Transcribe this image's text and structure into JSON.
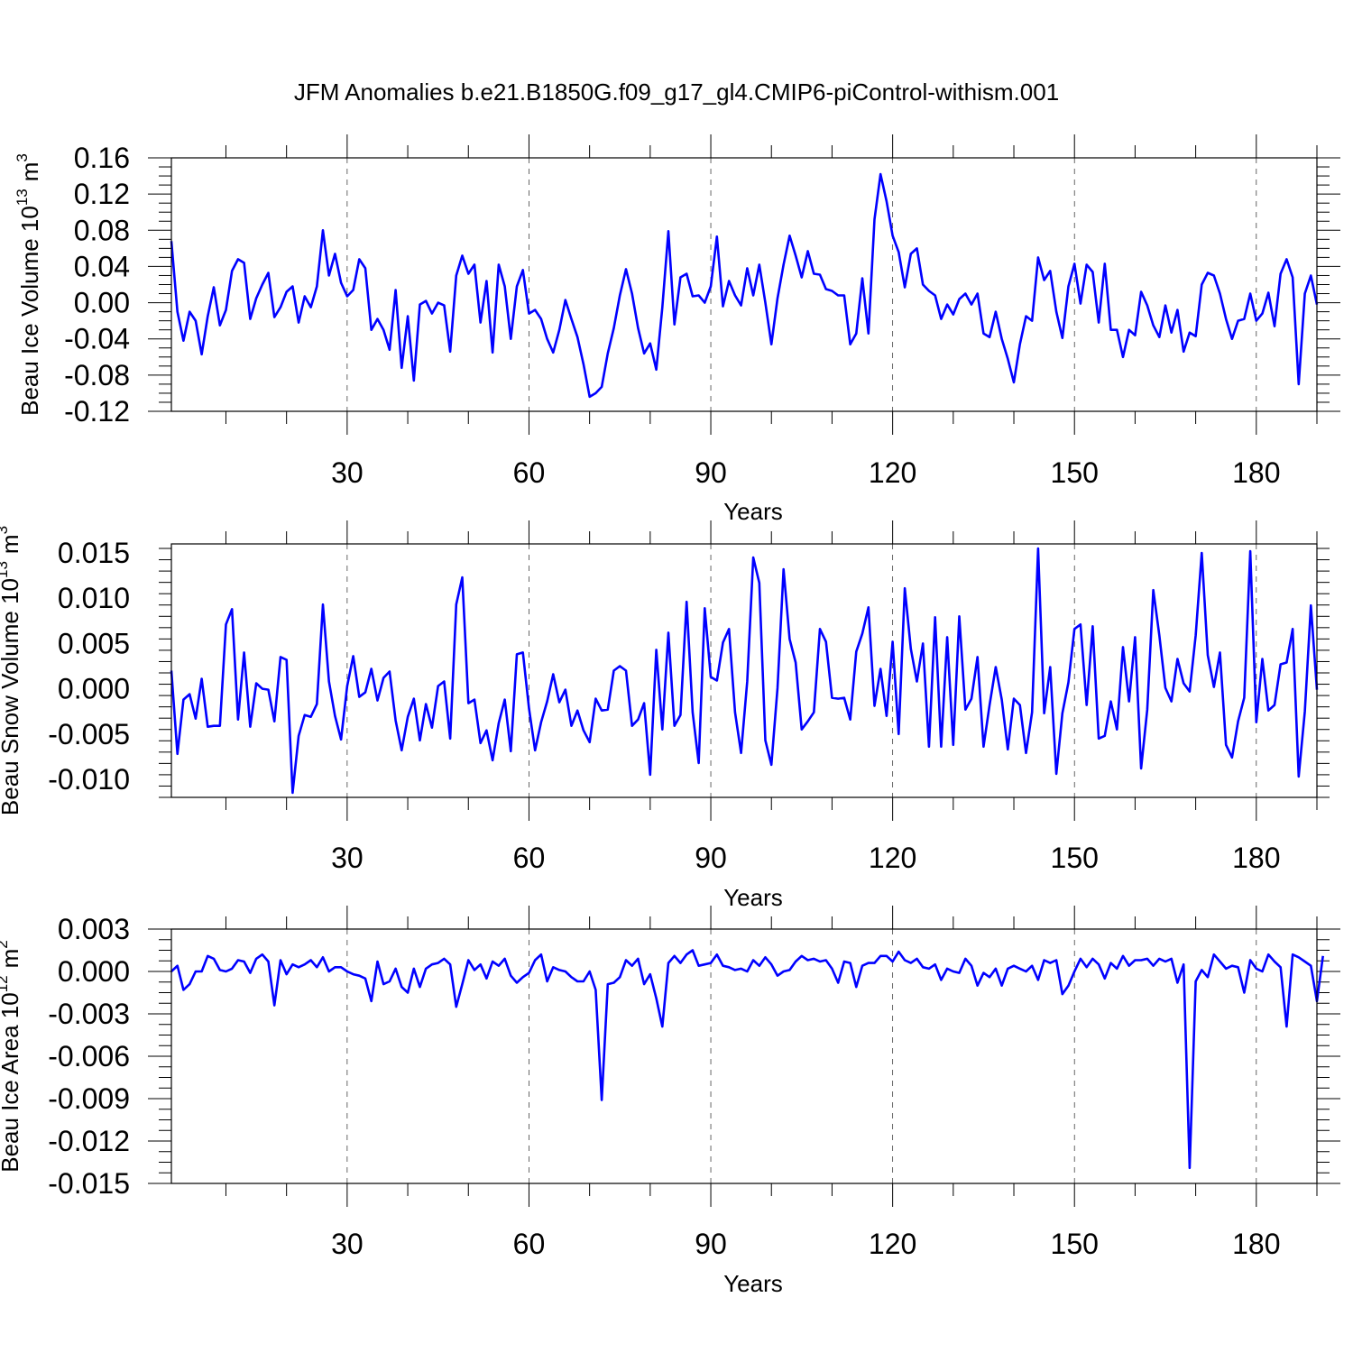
{
  "title": "JFM Anomalies b.e21.B1850G.f09_g17_gl4.CMIP6-piControl-withism.001",
  "line_color": "#0000ff",
  "chart_data": [
    {
      "type": "line",
      "ylabel": "Beau Ice Volume 10",
      "ylabel_exp": "13",
      "ylabel_unit": "m",
      "ylabel_unit_exp": "3",
      "xlabel": "Years",
      "xlim": [
        1,
        190
      ],
      "ylim": [
        -0.12,
        0.16
      ],
      "yticks": [
        -0.12,
        -0.08,
        -0.04,
        0.0,
        0.04,
        0.08,
        0.12,
        0.16
      ],
      "ytick_labels": [
        "-0.12",
        "-0.08",
        "-0.04",
        "0.00",
        "0.04",
        "0.08",
        "0.12",
        "0.16"
      ],
      "xticks": [
        30,
        60,
        90,
        120,
        150,
        180
      ],
      "xtick_labels": [
        "30",
        "60",
        "90",
        "120",
        "150",
        "180"
      ],
      "values": [
        0.068,
        -0.01,
        -0.042,
        -0.01,
        -0.02,
        -0.057,
        -0.015,
        0.017,
        -0.025,
        -0.008,
        0.035,
        0.048,
        0.044,
        -0.018,
        0.005,
        0.02,
        0.033,
        -0.016,
        -0.005,
        0.012,
        0.018,
        -0.022,
        0.007,
        -0.005,
        0.018,
        0.08,
        0.03,
        0.054,
        0.022,
        0.007,
        0.014,
        0.048,
        0.038,
        -0.03,
        -0.018,
        -0.03,
        -0.052,
        0.014,
        -0.072,
        -0.015,
        -0.086,
        -0.002,
        0.002,
        -0.012,
        0.0,
        -0.003,
        -0.054,
        0.03,
        0.052,
        0.032,
        0.042,
        -0.022,
        0.024,
        -0.055,
        0.042,
        0.018,
        -0.04,
        0.018,
        0.036,
        -0.012,
        -0.008,
        -0.018,
        -0.04,
        -0.055,
        -0.03,
        0.003,
        -0.018,
        -0.038,
        -0.068,
        -0.104,
        -0.1,
        -0.093,
        -0.056,
        -0.028,
        0.008,
        0.037,
        0.01,
        -0.028,
        -0.056,
        -0.045,
        -0.074,
        -0.005,
        0.079,
        -0.024,
        0.028,
        0.032,
        0.007,
        0.008,
        0.0,
        0.018,
        0.073,
        -0.004,
        0.024,
        0.008,
        -0.003,
        0.038,
        0.008,
        0.042,
        0.0,
        -0.046,
        0.005,
        0.042,
        0.074,
        0.052,
        0.028,
        0.057,
        0.032,
        0.031,
        0.015,
        0.013,
        0.008,
        0.008,
        -0.046,
        -0.034,
        0.027,
        -0.034,
        0.092,
        0.142,
        0.112,
        0.074,
        0.056,
        0.017,
        0.054,
        0.06,
        0.02,
        0.013,
        0.008,
        -0.018,
        -0.002,
        -0.013,
        0.004,
        0.01,
        -0.002,
        0.01,
        -0.034,
        -0.038,
        -0.01,
        -0.04,
        -0.062,
        -0.088,
        -0.046,
        -0.015,
        -0.02,
        0.05,
        0.025,
        0.035,
        -0.01,
        -0.039,
        0.018,
        0.043,
        -0.001,
        0.042,
        0.034,
        -0.022,
        0.043,
        -0.03,
        -0.03,
        -0.06,
        -0.03,
        -0.036,
        0.012,
        -0.003,
        -0.025,
        -0.038,
        -0.003,
        -0.033,
        -0.008,
        -0.054,
        -0.033,
        -0.037,
        0.02,
        0.033,
        0.03,
        0.01,
        -0.018,
        -0.04,
        -0.02,
        -0.018,
        0.01,
        -0.02,
        -0.012,
        0.011,
        -0.026,
        0.032,
        0.048,
        0.028,
        -0.09,
        0.01,
        0.03,
        -0.002
      ]
    },
    {
      "type": "line",
      "ylabel": "Beau Snow Volume 10",
      "ylabel_exp": "13",
      "ylabel_unit": "m",
      "ylabel_unit_exp": "3",
      "xlabel": "Years",
      "xlim": [
        1,
        190
      ],
      "ylim": [
        -0.012,
        0.016
      ],
      "yticks": [
        -0.01,
        -0.005,
        0.0,
        0.005,
        0.01,
        0.015
      ],
      "ytick_labels": [
        "-0.010",
        "-0.005",
        "0.000",
        "0.005",
        "0.010",
        "0.015"
      ],
      "xticks": [
        30,
        60,
        90,
        120,
        150,
        180
      ],
      "xtick_labels": [
        "30",
        "60",
        "90",
        "120",
        "150",
        "180"
      ],
      "values": [
        0.002,
        -0.0072,
        -0.0012,
        -0.0006,
        -0.0033,
        0.0011,
        -0.0042,
        -0.0041,
        -0.0041,
        0.0071,
        0.0088,
        -0.0034,
        0.004,
        -0.0042,
        0.0006,
        0.0,
        -0.0001,
        -0.0036,
        0.0035,
        0.0032,
        -0.0115,
        -0.0052,
        -0.0029,
        -0.0031,
        -0.0017,
        0.0093,
        0.0008,
        -0.003,
        -0.0056,
        0.0003,
        0.0036,
        -0.0009,
        -0.0004,
        0.0022,
        -0.0013,
        0.0012,
        0.0019,
        -0.0035,
        -0.0068,
        -0.0031,
        -0.0011,
        -0.0057,
        -0.0017,
        -0.0043,
        0.0003,
        0.0008,
        -0.0055,
        0.0093,
        0.0123,
        -0.0016,
        -0.0012,
        -0.006,
        -0.0046,
        -0.0079,
        -0.0038,
        -0.0012,
        -0.0069,
        0.0038,
        0.004,
        -0.0022,
        -0.0068,
        -0.0037,
        -0.0014,
        0.0016,
        -0.0015,
        -0.0001,
        -0.0041,
        -0.0024,
        -0.0046,
        -0.0059,
        -0.0011,
        -0.0024,
        -0.0023,
        0.002,
        0.0025,
        0.002,
        -0.0041,
        -0.0034,
        -0.0016,
        -0.0095,
        0.0043,
        -0.0045,
        0.0062,
        -0.0041,
        -0.0029,
        0.0096,
        -0.0026,
        -0.0082,
        0.0089,
        0.0013,
        0.0009,
        0.0051,
        0.0066,
        -0.0026,
        -0.0071,
        0.0008,
        0.0145,
        0.0117,
        -0.0057,
        -0.0084,
        0.0001,
        0.0132,
        0.0055,
        0.0029,
        -0.0045,
        -0.0036,
        -0.0026,
        0.0066,
        0.0052,
        -0.001,
        -0.0011,
        -0.001,
        -0.0034,
        0.0041,
        0.0061,
        0.009,
        -0.0019,
        0.0022,
        -0.003,
        0.0052,
        -0.005,
        0.0111,
        0.0044,
        0.0008,
        0.005,
        -0.0064,
        0.0079,
        -0.0064,
        0.0057,
        -0.0062,
        0.008,
        -0.0023,
        -0.0011,
        0.0035,
        -0.0064,
        -0.0018,
        0.0024,
        -0.0012,
        -0.0067,
        -0.0011,
        -0.0018,
        -0.0071,
        -0.0026,
        0.0155,
        -0.0027,
        0.0024,
        -0.0094,
        -0.0027,
        0.0007,
        0.0066,
        0.0071,
        -0.0018,
        0.0069,
        -0.0055,
        -0.0052,
        -0.0014,
        -0.0045,
        0.0046,
        -0.0014,
        0.0057,
        -0.0088,
        -0.0023,
        0.0109,
        0.0059,
        0.0001,
        -0.0014,
        0.0033,
        0.0006,
        -0.0003,
        0.0059,
        0.015,
        0.0037,
        0.0002,
        0.004,
        -0.0062,
        -0.0076,
        -0.0036,
        -0.001,
        0.0152,
        -0.0037,
        0.0033,
        -0.0024,
        -0.0018,
        0.0027,
        0.0029,
        0.0066,
        -0.0097,
        -0.0025,
        0.0092,
        -0.0001
      ]
    },
    {
      "type": "line",
      "ylabel": "Beau Ice Area 10",
      "ylabel_exp": "12",
      "ylabel_unit": "m",
      "ylabel_unit_exp": "2",
      "xlabel": "Years",
      "xlim": [
        1,
        190
      ],
      "ylim": [
        -0.015,
        0.003
      ],
      "yticks": [
        -0.015,
        -0.012,
        -0.009,
        -0.006,
        -0.003,
        0.0,
        0.003
      ],
      "ytick_labels": [
        "-0.015",
        "-0.012",
        "-0.009",
        "-0.006",
        "-0.003",
        "0.000",
        "0.003"
      ],
      "xticks": [
        30,
        60,
        90,
        120,
        150,
        180
      ],
      "xtick_labels": [
        "30",
        "60",
        "90",
        "120",
        "150",
        "180"
      ],
      "values": [
        0.0,
        0.0004,
        -0.0013,
        -0.0009,
        0.0,
        0.0,
        0.0011,
        0.0009,
        0.0001,
        0.0,
        0.0002,
        0.0008,
        0.0007,
        -0.0001,
        0.0009,
        0.0012,
        0.0007,
        -0.0024,
        0.0008,
        -0.0002,
        0.0005,
        0.0003,
        0.0005,
        0.0008,
        0.0003,
        0.001,
        0.0,
        0.0003,
        0.0003,
        0.0,
        -0.0002,
        -0.0003,
        -0.0005,
        -0.0021,
        0.0007,
        -0.0009,
        -0.0007,
        0.0002,
        -0.0011,
        -0.0015,
        0.0002,
        -0.0011,
        0.0002,
        0.0005,
        0.0006,
        0.0009,
        0.0005,
        -0.0025,
        -0.0009,
        0.0008,
        0.0001,
        0.0005,
        -0.0005,
        0.0007,
        0.0004,
        0.0009,
        -0.0003,
        -0.0008,
        -0.0004,
        -0.0001,
        0.0008,
        0.0012,
        -0.0007,
        0.0003,
        0.0001,
        0.0,
        -0.0004,
        -0.0007,
        -0.0007,
        0.0,
        -0.0013,
        -0.0091,
        -0.0009,
        -0.0008,
        -0.0004,
        0.0008,
        0.0004,
        0.0009,
        -0.0009,
        -0.0002,
        -0.0019,
        -0.0039,
        0.0006,
        0.0011,
        0.0006,
        0.0012,
        0.0015,
        0.0004,
        0.0005,
        0.0006,
        0.0012,
        0.0004,
        0.0003,
        0.0001,
        0.0002,
        0.0,
        0.0008,
        0.0004,
        0.001,
        0.0005,
        -0.0003,
        0.0,
        0.0001,
        0.0007,
        0.0011,
        0.0008,
        0.0009,
        0.0007,
        0.0008,
        0.0002,
        -0.0008,
        0.0007,
        0.0006,
        -0.0011,
        0.0004,
        0.0006,
        0.0006,
        0.0011,
        0.0011,
        0.0007,
        0.0014,
        0.0008,
        0.0006,
        0.0009,
        0.0003,
        0.0002,
        0.0005,
        -0.0006,
        0.0002,
        0.0,
        -0.0001,
        0.0009,
        0.0004,
        -0.001,
        -0.0001,
        -0.0004,
        0.0002,
        -0.001,
        0.0002,
        0.0004,
        0.0002,
        0.0,
        0.0004,
        -0.0006,
        0.0008,
        0.0006,
        0.0008,
        -0.0016,
        -0.001,
        0.0,
        0.0009,
        0.0003,
        0.0009,
        0.0005,
        -0.0005,
        0.0006,
        0.0002,
        0.0011,
        0.0004,
        0.0008,
        0.0008,
        0.0009,
        0.0004,
        0.0009,
        0.0007,
        0.0009,
        -0.0008,
        0.0005,
        -0.0139,
        -0.0007,
        0.0001,
        -0.0004,
        0.0012,
        0.0007,
        0.0002,
        0.0004,
        0.0003,
        -0.0015,
        0.0008,
        0.0002,
        0.0,
        0.0012,
        0.0007,
        0.0003,
        -0.0039,
        0.0012,
        0.001,
        0.0007,
        0.0004,
        -0.0021,
        0.0011
      ]
    }
  ]
}
